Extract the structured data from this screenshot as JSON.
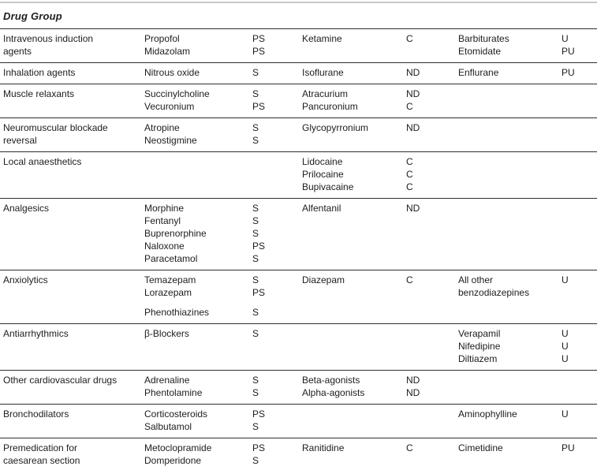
{
  "page": {
    "background": "#ffffff",
    "text_color": "#1d1d1d",
    "rule_top_color": "#c8c8c8",
    "rule_bottom_color": "#9d9d9d",
    "row_rule_color": "#2e2e2e"
  },
  "table": {
    "header": "Drug Group",
    "codes_seen": [
      "PS",
      "S",
      "C",
      "ND",
      "U",
      "PU"
    ],
    "groups": [
      {
        "name": [
          "Intravenous induction",
          "agents"
        ],
        "drugs_a": [
          "Propofol",
          "Midazolam"
        ],
        "codes_a": [
          "PS",
          "PS"
        ],
        "drugs_b": [
          "Ketamine"
        ],
        "codes_b": [
          "C"
        ],
        "drugs_c": [
          "Barbiturates",
          "Etomidate"
        ],
        "codes_c": [
          "U",
          "PU"
        ]
      },
      {
        "name": [
          "Inhalation agents"
        ],
        "drugs_a": [
          "Nitrous oxide"
        ],
        "codes_a": [
          "S"
        ],
        "drugs_b": [
          "Isoflurane"
        ],
        "codes_b": [
          "ND"
        ],
        "drugs_c": [
          "Enflurane"
        ],
        "codes_c": [
          "PU"
        ]
      },
      {
        "name": [
          "Muscle relaxants"
        ],
        "drugs_a": [
          "Succinylcholine",
          "Vecuronium"
        ],
        "codes_a": [
          "S",
          "PS"
        ],
        "drugs_b": [
          "Atracurium",
          "Pancuronium"
        ],
        "codes_b": [
          "ND",
          "C"
        ],
        "drugs_c": [],
        "codes_c": []
      },
      {
        "name": [
          "Neuromuscular blockade",
          "reversal"
        ],
        "drugs_a": [
          "Atropine",
          "Neostigmine"
        ],
        "codes_a": [
          "S",
          "S"
        ],
        "drugs_b": [
          "Glycopyrronium"
        ],
        "codes_b": [
          "ND"
        ],
        "drugs_c": [],
        "codes_c": []
      },
      {
        "name": [
          "Local anaesthetics"
        ],
        "drugs_a": [],
        "codes_a": [],
        "drugs_b": [
          "Lidocaine",
          "Prilocaine",
          "Bupivacaine"
        ],
        "codes_b": [
          "C",
          "C",
          "C"
        ],
        "drugs_c": [],
        "codes_c": []
      },
      {
        "name": [
          "Analgesics"
        ],
        "drugs_a": [
          "Morphine",
          "Fentanyl",
          "Buprenorphine",
          "Naloxone",
          "Paracetamol"
        ],
        "codes_a": [
          "S",
          "S",
          "S",
          "PS",
          "S"
        ],
        "drugs_b": [
          "Alfentanil"
        ],
        "codes_b": [
          "ND"
        ],
        "drugs_c": [],
        "codes_c": []
      },
      {
        "name": [
          "Anxiolytics"
        ],
        "drugs_a": [
          "Temazepam",
          "Lorazepam",
          "",
          "Phenothiazines"
        ],
        "codes_a": [
          "S",
          "PS",
          "",
          "S"
        ],
        "drugs_b": [
          "Diazepam"
        ],
        "codes_b": [
          "C"
        ],
        "drugs_c": [
          "All other",
          "benzodiazepines"
        ],
        "codes_c": [
          "U"
        ]
      },
      {
        "name": [
          "Antiarrhythmics"
        ],
        "drugs_a": [
          "β-Blockers"
        ],
        "codes_a": [
          "S"
        ],
        "drugs_b": [],
        "codes_b": [],
        "drugs_c": [
          "Verapamil",
          "Nifedipine",
          "Diltiazem"
        ],
        "codes_c": [
          "U",
          "U",
          "U"
        ]
      },
      {
        "name": [
          "Other cardiovascular drugs"
        ],
        "drugs_a": [
          "Adrenaline",
          "Phentolamine"
        ],
        "codes_a": [
          "S",
          "S"
        ],
        "drugs_b": [
          "Beta-agonists",
          "Alpha-agonists"
        ],
        "codes_b": [
          "ND",
          "ND"
        ],
        "drugs_c": [],
        "codes_c": []
      },
      {
        "name": [
          "Bronchodilators"
        ],
        "drugs_a": [
          "Corticosteroids",
          "Salbutamol"
        ],
        "codes_a": [
          "PS",
          "S"
        ],
        "drugs_b": [],
        "codes_b": [],
        "drugs_c": [
          "Aminophylline"
        ],
        "codes_c": [
          "U"
        ]
      },
      {
        "name": [
          "Premedication for",
          "caesarean section"
        ],
        "drugs_a": [
          "Metoclopramide",
          "Domperidone"
        ],
        "codes_a": [
          "PS",
          "S"
        ],
        "drugs_b": [
          "Ranitidine"
        ],
        "codes_b": [
          "C"
        ],
        "drugs_c": [
          "Cimetidine"
        ],
        "codes_c": [
          "PU"
        ]
      }
    ]
  }
}
